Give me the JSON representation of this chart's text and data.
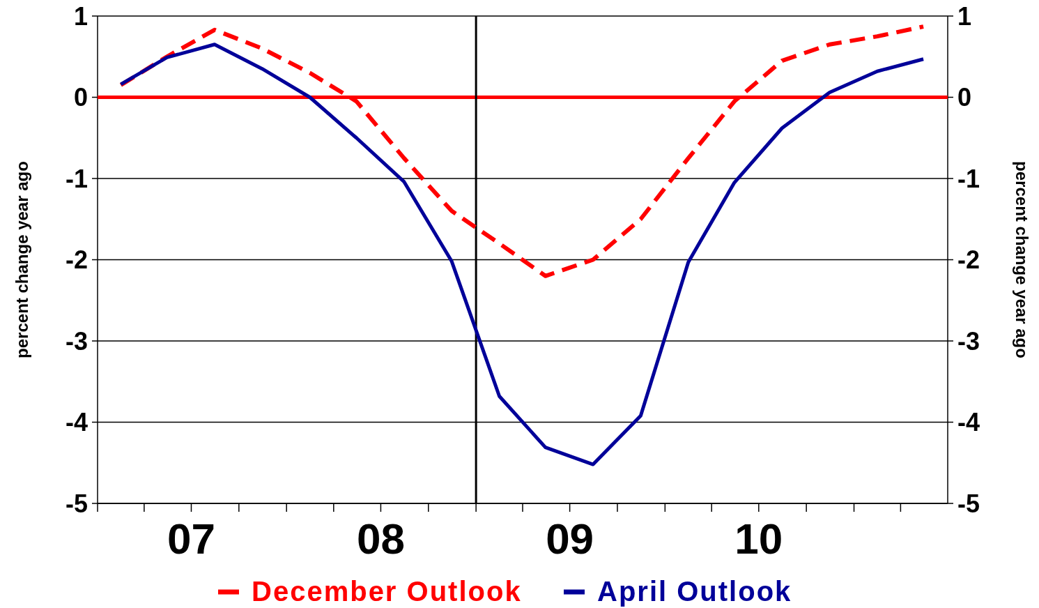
{
  "chart_data": {
    "type": "line",
    "ylabel": "percent change year ago",
    "y2label": "percent change year ago",
    "x": [
      "2007-02-15",
      "2007-05-15",
      "2007-08-15",
      "2007-11-15",
      "2008-02-15",
      "2008-05-15",
      "2008-08-15",
      "2008-11-15",
      "2009-02-15",
      "2009-05-15",
      "2009-08-15",
      "2009-11-15",
      "2010-02-15",
      "2010-05-15",
      "2010-08-15",
      "2010-11-15",
      "2011-02-15",
      "2011-05-15"
    ],
    "xlim": [
      "2007-01-01",
      "2011-07-01"
    ],
    "xticks": [
      {
        "value": "2007-01-01",
        "label": null
      },
      {
        "value": "2007-04-01",
        "label": null
      },
      {
        "value": "2007-07-01",
        "label": "07"
      },
      {
        "value": "2007-10-01",
        "label": null
      },
      {
        "value": "2008-01-01",
        "label": null
      },
      {
        "value": "2008-04-01",
        "label": null
      },
      {
        "value": "2008-07-01",
        "label": "08"
      },
      {
        "value": "2008-10-01",
        "label": null
      },
      {
        "value": "2009-01-01",
        "label": null
      },
      {
        "value": "2009-04-01",
        "label": null
      },
      {
        "value": "2009-07-01",
        "label": "09"
      },
      {
        "value": "2009-10-01",
        "label": null
      },
      {
        "value": "2010-01-01",
        "label": null
      },
      {
        "value": "2010-04-01",
        "label": null
      },
      {
        "value": "2010-07-01",
        "label": "10"
      },
      {
        "value": "2010-10-01",
        "label": null
      },
      {
        "value": "2011-01-01",
        "label": null
      },
      {
        "value": "2011-04-01",
        "label": null
      }
    ],
    "ylim": [
      -5,
      1
    ],
    "yticks": [
      -5,
      -4,
      -3,
      -2,
      -1,
      0,
      1
    ],
    "y2lim": [
      -5,
      1
    ],
    "y2ticks": [
      -5,
      -4,
      -3,
      -2,
      -1,
      0,
      1
    ],
    "grid": "y",
    "legend": "bottom",
    "series": [
      {
        "name": "December Outlook",
        "color": "#ff0000",
        "line_style": "dashed",
        "values": [
          0.15,
          0.5,
          0.83,
          0.6,
          0.3,
          -0.05,
          -0.75,
          -1.4,
          -1.8,
          -2.2,
          -2.0,
          -1.5,
          -0.75,
          -0.05,
          0.45,
          0.65,
          0.75,
          0.87
        ]
      },
      {
        "name": "April Outlook",
        "color": "#000099",
        "line_style": "solid",
        "values": [
          0.16,
          0.49,
          0.65,
          0.35,
          0.0,
          -0.5,
          -1.04,
          -2.02,
          -3.68,
          -4.31,
          -4.52,
          -3.92,
          -2.03,
          -1.05,
          -0.38,
          0.06,
          0.32,
          0.47
        ]
      }
    ],
    "ref_lines": [
      {
        "axis": "y",
        "value": 0,
        "label": null,
        "color": "#ff0000"
      },
      {
        "axis": "x",
        "value": "2009-01-01",
        "label": null,
        "color": "#000000"
      }
    ]
  }
}
